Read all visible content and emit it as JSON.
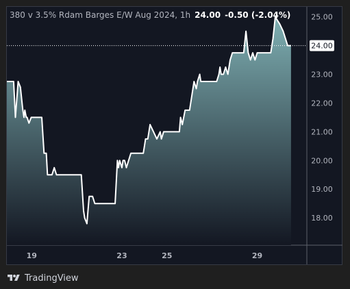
{
  "header": {
    "title": "380 v 3.5% Rdam Barges E/W Aug 2024, 1h",
    "last": "24.00",
    "change": "-0.50 (-2.04%)"
  },
  "footer": {
    "brand": "TradingView",
    "logo_icon": "tradingview-logo-icon"
  },
  "colors": {
    "line": "#ffffff",
    "area_top": "#7fb0b3",
    "area_bottom": "#131722",
    "grid": "#2a2e39",
    "background": "#131722",
    "price_label_bg": "#ffffff",
    "price_label_text": "#131722"
  },
  "chart_data": {
    "type": "area",
    "title": "380 v 3.5% Rdam Barges E/W Aug 2024, 1h",
    "xlabel": "",
    "ylabel": "",
    "ylim": [
      17.05,
      25.35
    ],
    "xlim": [
      17.9,
      31.2
    ],
    "y_ticks": [
      "18.00",
      "19.00",
      "20.00",
      "21.00",
      "22.00",
      "23.00",
      "24.00",
      "25.00"
    ],
    "x_ticks": [
      {
        "label": "19",
        "value": 19
      },
      {
        "label": "23",
        "value": 23
      },
      {
        "label": "25",
        "value": 25
      },
      {
        "label": "29",
        "value": 29
      }
    ],
    "current_price": 24.0,
    "grid": false,
    "legend": "none",
    "series": [
      {
        "x": [
          17.9,
          18.2,
          18.28,
          18.4,
          18.5,
          18.6,
          18.66,
          18.7,
          18.76,
          18.8,
          18.88,
          18.98,
          19.05,
          19.2,
          19.3,
          19.45,
          19.55,
          19.65,
          19.7,
          19.75,
          19.8,
          19.9,
          20.0,
          20.1,
          20.3,
          20.6,
          20.9,
          21.2,
          21.3,
          21.35,
          21.45,
          21.55,
          21.6,
          21.7,
          21.8,
          22.0,
          22.2,
          22.5,
          22.7,
          22.8,
          22.85,
          22.9,
          23.0,
          23.05,
          23.12,
          23.2,
          23.3,
          23.4,
          23.6,
          23.8,
          23.85,
          23.95,
          24.0,
          24.05,
          24.15,
          24.25,
          24.4,
          24.55,
          24.7,
          24.75,
          24.85,
          24.9,
          25.0,
          25.1,
          25.3,
          25.5,
          25.55,
          25.6,
          25.68,
          25.8,
          26.0,
          26.2,
          26.3,
          26.35,
          26.45,
          26.5,
          26.6,
          26.75,
          26.85,
          27.0,
          27.1,
          27.2,
          27.3,
          27.35,
          27.4,
          27.5,
          27.6,
          27.7,
          27.8,
          27.9,
          28.0,
          28.1,
          28.2,
          28.3,
          28.4,
          28.5,
          28.6,
          28.7,
          28.8,
          28.9,
          29.0,
          29.1,
          29.2,
          29.3,
          29.35,
          29.4,
          29.5,
          29.6,
          29.7,
          29.8,
          30.0,
          30.15,
          30.25,
          30.35,
          30.4,
          30.5
        ],
        "values": [
          22.75,
          22.75,
          21.5,
          22.75,
          22.55,
          21.8,
          21.5,
          21.75,
          21.5,
          21.5,
          21.3,
          21.5,
          21.5,
          21.5,
          21.5,
          21.5,
          20.25,
          20.25,
          19.5,
          19.5,
          19.5,
          19.5,
          19.75,
          19.5,
          19.5,
          19.5,
          19.5,
          19.5,
          18.25,
          18.0,
          17.8,
          18.75,
          18.75,
          18.75,
          18.5,
          18.5,
          18.5,
          18.5,
          18.5,
          20.0,
          19.75,
          20.0,
          19.75,
          20.0,
          20.0,
          19.75,
          20.0,
          20.25,
          20.25,
          20.25,
          20.25,
          20.25,
          20.5,
          20.75,
          20.75,
          21.25,
          21.0,
          20.75,
          21.0,
          20.75,
          21.0,
          21.0,
          21.0,
          21.0,
          21.0,
          21.0,
          21.0,
          21.5,
          21.25,
          21.75,
          21.75,
          22.75,
          22.5,
          22.75,
          23.0,
          22.75,
          22.75,
          22.75,
          22.75,
          22.75,
          22.75,
          22.75,
          23.0,
          23.25,
          23.0,
          23.0,
          23.25,
          23.0,
          23.5,
          23.75,
          23.75,
          23.75,
          23.75,
          23.75,
          23.75,
          24.5,
          23.75,
          23.5,
          23.75,
          23.5,
          23.75,
          23.75,
          23.75,
          23.75,
          23.75,
          23.75,
          23.75,
          23.75,
          24.25,
          25.0,
          24.75,
          24.5,
          24.25,
          24.0,
          24.0,
          24.0
        ]
      }
    ]
  }
}
